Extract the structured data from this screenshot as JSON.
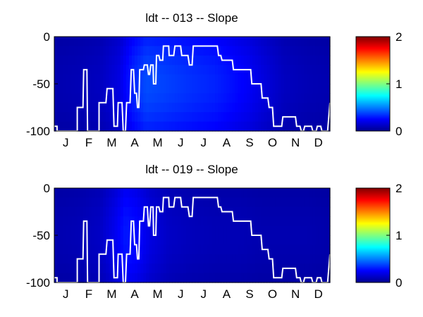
{
  "chart_data": [
    {
      "type": "heatmap",
      "title": "ldt -- 013 -- Slope",
      "xlabel": "",
      "ylabel": "",
      "x_ticks": [
        "J",
        "F",
        "M",
        "A",
        "M",
        "J",
        "J",
        "A",
        "S",
        "O",
        "N",
        "D"
      ],
      "x_range": [
        0,
        12
      ],
      "y_ticks": [
        0,
        -50,
        -100
      ],
      "ylim": [
        -100,
        0
      ],
      "colorbar": {
        "ticks": [
          0,
          1,
          2
        ],
        "range": [
          0,
          2
        ],
        "colormap": "jet"
      },
      "intensity_profile": {
        "month": [
          0,
          1,
          2,
          2.8,
          3.4,
          4.0,
          4.8,
          5.5,
          6.2,
          7.0,
          7.8,
          8.5,
          9.2,
          10,
          11,
          12
        ],
        "value": [
          0.09,
          0.1,
          0.12,
          0.18,
          0.3,
          0.38,
          0.36,
          0.34,
          0.32,
          0.3,
          0.26,
          0.22,
          0.17,
          0.12,
          0.1,
          0.09
        ]
      },
      "line": {
        "color": "#ffffff",
        "month": [
          0,
          0.12,
          0.12,
          1.0,
          1.0,
          1.25,
          1.28,
          1.42,
          1.45,
          1.95,
          1.95,
          2.25,
          2.3,
          2.55,
          2.6,
          2.75,
          2.78,
          2.95,
          3.0,
          3.1,
          3.15,
          3.3,
          3.35,
          3.45,
          3.5,
          3.58,
          3.62,
          3.68,
          3.72,
          3.88,
          3.92,
          4.05,
          4.1,
          4.15,
          4.2,
          4.3,
          4.32,
          4.42,
          4.45,
          4.55,
          4.6,
          4.72,
          4.75,
          4.98,
          5.0,
          5.2,
          5.25,
          5.5,
          5.55,
          5.82,
          5.88,
          6.0,
          6.05,
          7.1,
          7.15,
          7.25,
          7.3,
          7.75,
          7.8,
          8.55,
          8.6,
          9.0,
          9.05,
          9.3,
          9.35,
          9.5,
          9.55,
          9.9,
          9.95,
          10.5,
          10.55,
          10.7,
          10.75,
          10.85,
          10.9,
          11.2,
          11.25,
          11.4,
          11.45,
          11.6,
          11.65,
          11.9,
          12.0
        ],
        "depth": [
          -95,
          -95,
          -100,
          -100,
          -75,
          -75,
          -35,
          -35,
          -100,
          -100,
          -70,
          -70,
          -55,
          -55,
          -95,
          -95,
          -70,
          -70,
          -100,
          -100,
          -70,
          -70,
          -35,
          -35,
          -60,
          -60,
          -75,
          -75,
          -35,
          -35,
          -30,
          -30,
          -40,
          -40,
          -30,
          -30,
          -50,
          -50,
          -20,
          -20,
          -25,
          -25,
          -10,
          -10,
          -20,
          -20,
          -10,
          -10,
          -20,
          -20,
          -30,
          -30,
          -10,
          -10,
          -20,
          -20,
          -25,
          -25,
          -35,
          -35,
          -50,
          -50,
          -65,
          -65,
          -75,
          -75,
          -95,
          -95,
          -85,
          -85,
          -95,
          -95,
          -100,
          -100,
          -95,
          -95,
          -100,
          -100,
          -95,
          -95,
          -100,
          -100,
          -70
        ]
      }
    },
    {
      "type": "heatmap",
      "title": "ldt -- 019 -- Slope",
      "xlabel": "",
      "ylabel": "",
      "x_ticks": [
        "J",
        "F",
        "M",
        "A",
        "M",
        "J",
        "J",
        "A",
        "S",
        "O",
        "N",
        "D"
      ],
      "x_range": [
        0,
        12
      ],
      "y_ticks": [
        0,
        -50,
        -100
      ],
      "ylim": [
        -100,
        0
      ],
      "colorbar": {
        "ticks": [
          0,
          1,
          2
        ],
        "range": [
          0,
          2
        ],
        "colormap": "jet"
      },
      "intensity_profile": {
        "month": [
          0,
          1,
          2,
          2.6,
          3.1,
          3.6,
          4.2,
          5.0,
          6.0,
          7.0,
          8.0,
          9.0,
          10,
          11,
          12
        ],
        "value": [
          0.09,
          0.1,
          0.13,
          0.2,
          0.28,
          0.25,
          0.18,
          0.13,
          0.11,
          0.1,
          0.1,
          0.09,
          0.09,
          0.09,
          0.08
        ]
      },
      "line": {
        "color": "#ffffff",
        "month": [
          0,
          0.12,
          0.12,
          1.0,
          1.0,
          1.25,
          1.28,
          1.42,
          1.45,
          1.95,
          1.95,
          2.25,
          2.3,
          2.55,
          2.6,
          2.75,
          2.78,
          2.95,
          3.0,
          3.1,
          3.15,
          3.3,
          3.35,
          3.45,
          3.5,
          3.58,
          3.62,
          3.68,
          3.72,
          3.88,
          3.92,
          4.05,
          4.1,
          4.15,
          4.2,
          4.3,
          4.32,
          4.42,
          4.45,
          4.55,
          4.6,
          4.72,
          4.75,
          4.98,
          5.0,
          5.2,
          5.25,
          5.5,
          5.55,
          5.82,
          5.88,
          6.0,
          6.05,
          7.1,
          7.15,
          7.25,
          7.3,
          7.75,
          7.8,
          8.55,
          8.6,
          9.0,
          9.05,
          9.3,
          9.35,
          9.5,
          9.55,
          9.9,
          9.95,
          10.5,
          10.55,
          10.7,
          10.75,
          10.85,
          10.9,
          11.2,
          11.25,
          11.4,
          11.45,
          11.6,
          11.65,
          11.9,
          12.0
        ],
        "depth": [
          -95,
          -95,
          -100,
          -100,
          -75,
          -75,
          -35,
          -35,
          -100,
          -100,
          -70,
          -70,
          -55,
          -55,
          -95,
          -95,
          -70,
          -70,
          -100,
          -100,
          -70,
          -70,
          -35,
          -35,
          -60,
          -60,
          -75,
          -75,
          -35,
          -35,
          -20,
          -20,
          -40,
          -40,
          -20,
          -20,
          -50,
          -50,
          -20,
          -20,
          -25,
          -25,
          -10,
          -10,
          -20,
          -20,
          -10,
          -10,
          -20,
          -20,
          -30,
          -30,
          -10,
          -10,
          -20,
          -20,
          -25,
          -25,
          -35,
          -35,
          -50,
          -50,
          -65,
          -65,
          -75,
          -75,
          -95,
          -95,
          -85,
          -85,
          -95,
          -95,
          -100,
          -100,
          -95,
          -95,
          -100,
          -100,
          -95,
          -95,
          -100,
          -100,
          -70
        ]
      }
    }
  ]
}
